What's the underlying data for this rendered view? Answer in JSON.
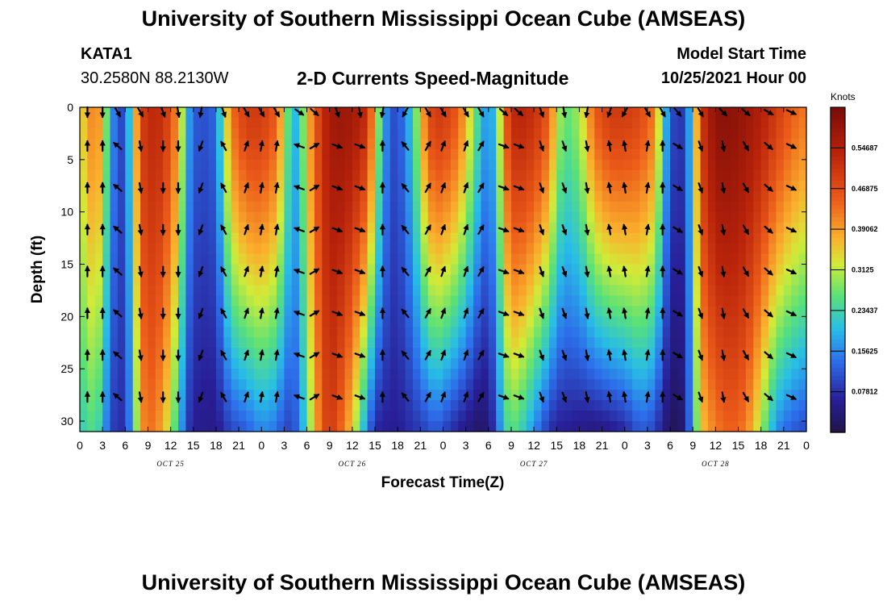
{
  "header": {
    "title": "University of Southern Mississippi Ocean Cube (AMSEAS)",
    "station_id": "KATA1",
    "station_coords": "30.2580N  88.2130W",
    "subtitle": "2-D Currents Speed-Magnitude",
    "model_start_label": "Model Start Time",
    "model_start_value": "10/25/2021 Hour 00"
  },
  "footer": {
    "title": "University of Southern Mississippi Ocean Cube (AMSEAS)"
  },
  "chart_data": {
    "type": "heatmap",
    "title": "2-D Currents Speed-Magnitude",
    "xlabel": "Forecast Time(Z)",
    "ylabel": "Depth (ft)",
    "xlim": [
      0,
      96
    ],
    "ylim": [
      0,
      31
    ],
    "x_ticks": [
      0,
      3,
      6,
      9,
      12,
      15,
      18,
      21,
      24,
      27,
      30,
      33,
      36,
      39,
      42,
      45,
      48,
      51,
      54,
      57,
      60,
      63,
      66,
      69,
      72,
      75,
      78,
      81,
      84,
      87,
      90,
      93,
      96
    ],
    "x_tick_labels": [
      "0",
      "3",
      "6",
      "9",
      "12",
      "15",
      "18",
      "21",
      "0",
      "3",
      "6",
      "9",
      "12",
      "15",
      "18",
      "21",
      "0",
      "3",
      "6",
      "9",
      "12",
      "15",
      "18",
      "21",
      "0",
      "3",
      "6",
      "9",
      "12",
      "15",
      "18",
      "21",
      "0"
    ],
    "y_ticks": [
      0,
      5,
      10,
      15,
      20,
      25,
      30
    ],
    "y_tick_labels": [
      "0",
      "5",
      "10",
      "15",
      "20",
      "25",
      "30"
    ],
    "day_labels": [
      {
        "label": "OCT 25",
        "x": 12
      },
      {
        "label": "OCT 26",
        "x": 36
      },
      {
        "label": "OCT 27",
        "x": 60
      },
      {
        "label": "OCT 28",
        "x": 84
      }
    ],
    "colorbar": {
      "unit": "Knots",
      "min": 0,
      "max": 0.625,
      "tick_values": [
        0.078125,
        0.15625,
        0.234375,
        0.3125,
        0.390625,
        0.46875,
        0.546875
      ],
      "tick_labels": [
        "0.07812",
        "0.15625",
        "0.23437",
        "0.3125",
        "0.39062",
        "0.46875",
        "0.54687"
      ]
    },
    "speed_profile": {
      "description": "Approximate speed (knots) per forecast hour at surface and at 30 ft; intermediate depths interpolated",
      "hours": [
        0,
        2,
        3,
        4,
        5,
        6,
        7,
        8,
        9,
        11,
        13,
        14,
        15,
        17,
        18,
        20,
        22,
        24,
        26,
        27,
        28,
        29,
        30,
        32,
        33,
        34,
        36,
        38,
        39,
        40,
        41,
        42,
        44,
        46,
        47,
        48,
        50,
        52,
        53,
        54,
        55,
        56,
        57,
        58,
        60,
        62,
        63,
        64,
        66,
        68,
        70,
        72,
        74,
        76,
        77,
        78,
        79,
        80,
        81,
        82,
        84,
        86,
        88,
        90,
        92,
        94,
        96
      ],
      "surface": [
        0.33,
        0.43,
        0.36,
        0.19,
        0.11,
        0.1,
        0.3,
        0.48,
        0.53,
        0.52,
        0.4,
        0.22,
        0.12,
        0.11,
        0.14,
        0.43,
        0.5,
        0.5,
        0.45,
        0.33,
        0.2,
        0.2,
        0.36,
        0.52,
        0.56,
        0.58,
        0.57,
        0.52,
        0.36,
        0.2,
        0.12,
        0.1,
        0.22,
        0.47,
        0.5,
        0.5,
        0.45,
        0.3,
        0.2,
        0.16,
        0.22,
        0.42,
        0.52,
        0.54,
        0.52,
        0.45,
        0.33,
        0.26,
        0.3,
        0.45,
        0.5,
        0.5,
        0.48,
        0.42,
        0.25,
        0.12,
        0.08,
        0.1,
        0.25,
        0.5,
        0.6,
        0.6,
        0.58,
        0.55,
        0.5,
        0.45,
        0.42
      ],
      "bottom": [
        0.22,
        0.26,
        0.2,
        0.1,
        0.08,
        0.08,
        0.2,
        0.38,
        0.44,
        0.38,
        0.22,
        0.1,
        0.06,
        0.05,
        0.05,
        0.1,
        0.12,
        0.16,
        0.14,
        0.1,
        0.1,
        0.14,
        0.25,
        0.46,
        0.5,
        0.47,
        0.35,
        0.15,
        0.07,
        0.06,
        0.06,
        0.06,
        0.08,
        0.1,
        0.12,
        0.1,
        0.06,
        0.03,
        0.02,
        0.04,
        0.1,
        0.22,
        0.26,
        0.24,
        0.16,
        0.08,
        0.06,
        0.06,
        0.05,
        0.04,
        0.05,
        0.07,
        0.12,
        0.1,
        0.05,
        0.02,
        0.01,
        0.05,
        0.2,
        0.35,
        0.42,
        0.45,
        0.42,
        0.3,
        0.16,
        0.12,
        0.1
      ]
    },
    "vectors": {
      "description": "Current direction (degrees clockwise from north) at each arrow column",
      "hours": [
        1,
        3,
        5,
        8,
        11,
        13,
        16,
        19,
        22,
        24,
        26,
        29,
        31,
        34,
        37,
        40,
        43,
        46,
        48,
        51,
        53,
        56,
        58,
        61,
        64,
        67,
        70,
        72,
        75,
        77,
        79,
        82,
        85,
        88,
        91,
        94
      ],
      "surface_dir": [
        180,
        180,
        150,
        150,
        160,
        170,
        190,
        160,
        150,
        150,
        150,
        125,
        130,
        160,
        170,
        190,
        210,
        150,
        150,
        150,
        150,
        130,
        130,
        160,
        170,
        190,
        200,
        210,
        150,
        150,
        140,
        150,
        135,
        130,
        120,
        115
      ],
      "depth_dir": [
        0,
        0,
        310,
        170,
        180,
        180,
        200,
        330,
        20,
        10,
        10,
        290,
        60,
        110,
        110,
        0,
        320,
        30,
        20,
        20,
        30,
        110,
        110,
        160,
        160,
        170,
        350,
        350,
        10,
        0,
        120,
        160,
        170,
        150,
        130,
        115
      ]
    }
  }
}
